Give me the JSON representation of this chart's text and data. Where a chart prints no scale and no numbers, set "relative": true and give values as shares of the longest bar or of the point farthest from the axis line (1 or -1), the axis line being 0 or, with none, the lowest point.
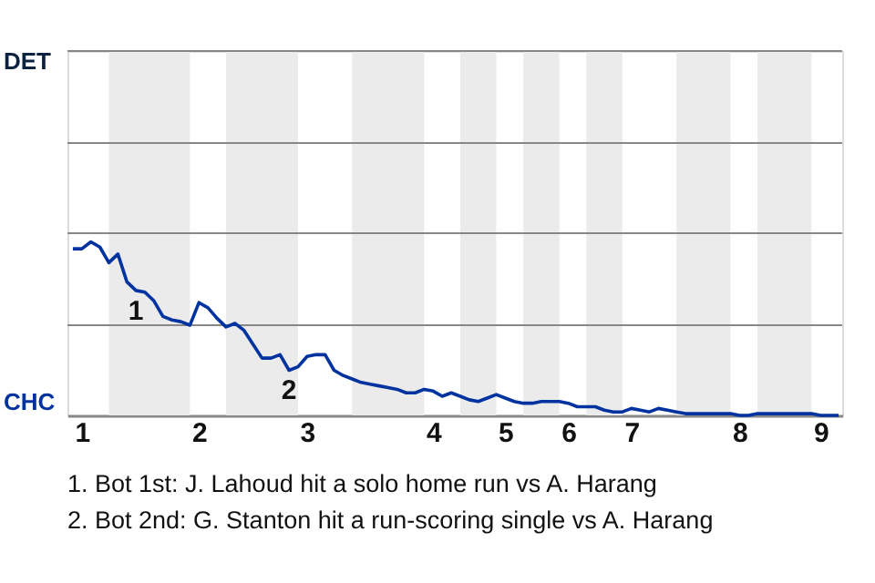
{
  "chart_data": {
    "type": "line",
    "relative": true,
    "categories": [
      null,
      "1",
      null,
      null,
      null,
      null,
      null,
      null,
      null,
      null,
      null,
      null,
      null,
      null,
      "2",
      null,
      null,
      null,
      null,
      null,
      null,
      null,
      null,
      null,
      null,
      null,
      "3",
      null,
      null,
      null,
      null,
      null,
      null,
      null,
      null,
      null,
      null,
      null,
      null,
      null,
      "4",
      null,
      null,
      null,
      null,
      null,
      null,
      null,
      "5",
      null,
      null,
      null,
      null,
      null,
      null,
      "6",
      null,
      null,
      null,
      null,
      null,
      null,
      "7",
      null,
      null,
      null,
      null,
      null,
      null,
      null,
      null,
      null,
      null,
      null,
      "8",
      null,
      null,
      null,
      null,
      null,
      null,
      null,
      null,
      "9",
      null,
      null
    ],
    "series": [
      {
        "color": "#0033a0",
        "values": [
          0.96,
          0.96,
          1,
          0.97,
          0.88,
          0.93,
          0.77,
          0.72,
          0.71,
          0.66,
          0.57,
          0.55,
          0.54,
          0.52,
          0.65,
          0.62,
          0.56,
          0.51,
          0.53,
          0.49,
          0.41,
          0.33,
          0.33,
          0.35,
          0.26,
          0.28,
          0.34,
          0.35,
          0.35,
          0.26,
          0.23,
          0.21,
          0.19,
          0.18,
          0.17,
          0.16,
          0.15,
          0.13,
          0.13,
          0.15,
          0.14,
          0.11,
          0.13,
          0.11,
          0.09,
          0.08,
          0.1,
          0.12,
          0.1,
          0.08,
          0.07,
          0.07,
          0.08,
          0.08,
          0.08,
          0.07,
          0.05,
          0.05,
          0.05,
          0.03,
          0.02,
          0.02,
          0.04,
          0.03,
          0.02,
          0.04,
          0.03,
          0.02,
          0.01,
          0.01,
          0.01,
          0.01,
          0.01,
          0.01,
          0,
          0,
          0.01,
          0.01,
          0.01,
          0.01,
          0.01,
          0.01,
          0.01,
          0,
          0,
          0
        ]
      }
    ],
    "ref_lines": [
      {
        "axis": "y",
        "value": 0.52,
        "color": "#888888"
      },
      {
        "axis": "y",
        "value": 1.05,
        "color": "#888888"
      },
      {
        "axis": "y",
        "value": 1.57,
        "color": "#888888"
      },
      {
        "axis": "y",
        "value": 2.1,
        "color": "#888888"
      }
    ],
    "annotations": [
      "DET",
      "CHC",
      {
        "text": "1",
        "y": 0.72
      },
      {
        "text": "2",
        "y": 0.26
      },
      "1. Bot 1st: J. Lahoud hit a solo home run vs A. Harang",
      "2. Bot 2nd: G. Stanton hit a run-scoring single vs A. Harang"
    ]
  }
}
